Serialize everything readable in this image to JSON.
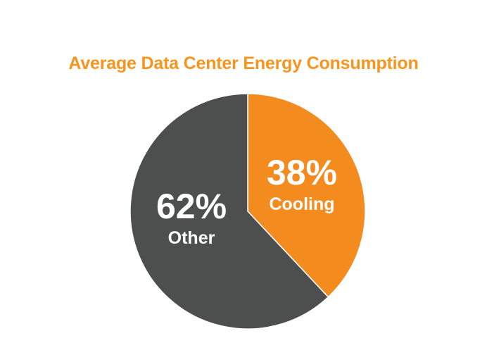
{
  "chart_data": {
    "type": "pie",
    "title": "Average Data Center Energy Consumption",
    "slices": [
      {
        "label": "Cooling",
        "value": 38,
        "value_label": "38%",
        "color": "#F48B1F"
      },
      {
        "label": "Other",
        "value": 62,
        "value_label": "62%",
        "color": "#4D4F4F"
      }
    ],
    "start_angle": "top",
    "direction": "clockwise",
    "legend": "none"
  }
}
